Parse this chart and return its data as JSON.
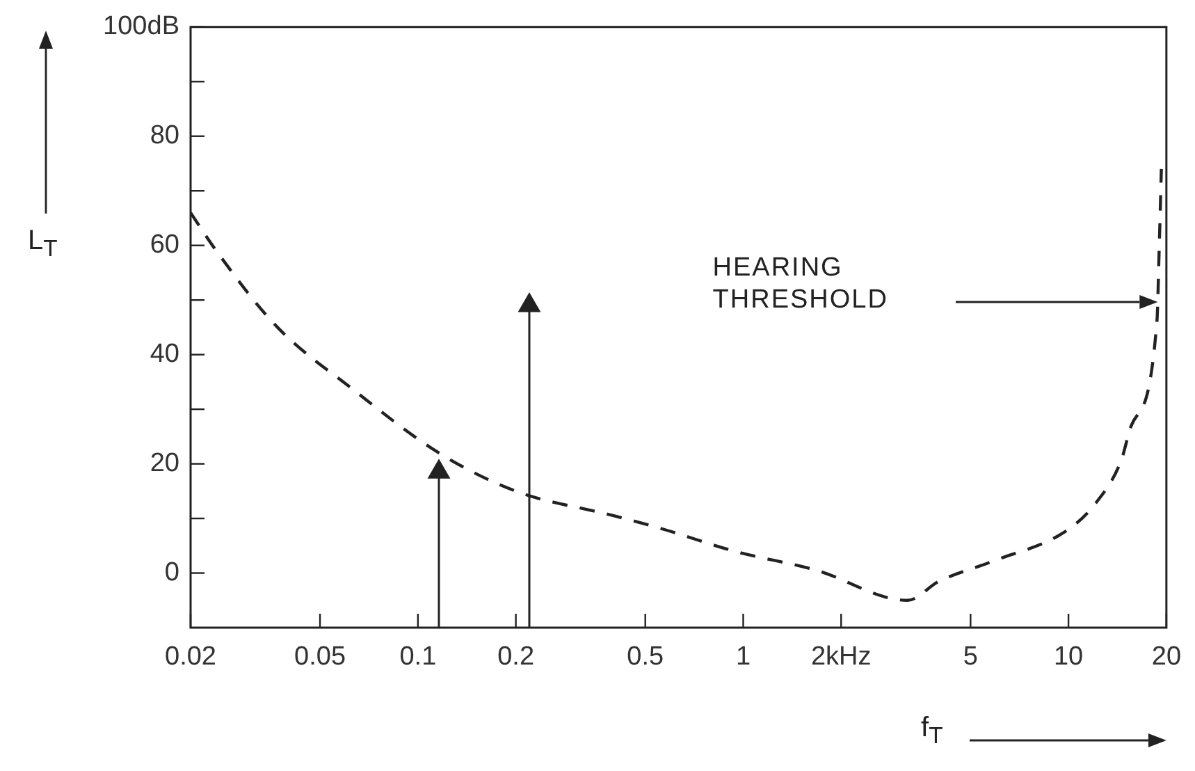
{
  "chart_data": {
    "type": "line",
    "xlabel": "f$_{T}$",
    "ylabel": "L$_{T}$",
    "annotations": [
      "HEARING THRESHOLD"
    ],
    "log": "x",
    "xlim": [
      0.02,
      20
    ],
    "xticks": [
      0.02,
      0.05,
      0.1,
      0.2,
      0.5,
      1,
      {
        "value": 2,
        "label": "2kHz"
      },
      5,
      10,
      20
    ],
    "ylim": [
      -10,
      100
    ],
    "yticks": [
      0,
      {
        "value": 10,
        "label": null
      },
      20,
      {
        "value": 30,
        "label": null
      },
      40,
      {
        "value": 50,
        "label": null
      },
      60,
      {
        "value": 70,
        "label": null
      },
      80,
      {
        "value": 90,
        "label": null
      },
      {
        "value": 100,
        "label": "100dB"
      }
    ],
    "grid": false,
    "legend": false,
    "series": [
      {
        "color": "#222222",
        "line_style": "dashed",
        "marker": "none",
        "x": [
          0.02,
          0.024,
          0.037,
          0.062,
          0.116,
          0.2,
          0.4,
          0.57,
          0.94,
          1.68,
          3.2,
          4.0,
          5.75,
          10,
          12.2,
          14.5,
          15.6,
          18.7,
          19,
          19.3
        ],
        "values": [
          66,
          59,
          45,
          34,
          22,
          15,
          10.5,
          8,
          4,
          0.5,
          -5,
          -1.5,
          2,
          8,
          13,
          20.5,
          27,
          46,
          59,
          74
        ]
      },
      {
        "type": "line",
        "color": "#222222",
        "marker": "triangle",
        "x": [
          0.116,
          0.116
        ],
        "values": [
          -10,
          18.5
        ]
      },
      {
        "type": "line",
        "color": "#222222",
        "marker": "triangle",
        "x": [
          0.22,
          0.22
        ],
        "values": [
          -10,
          49
        ]
      }
    ]
  }
}
